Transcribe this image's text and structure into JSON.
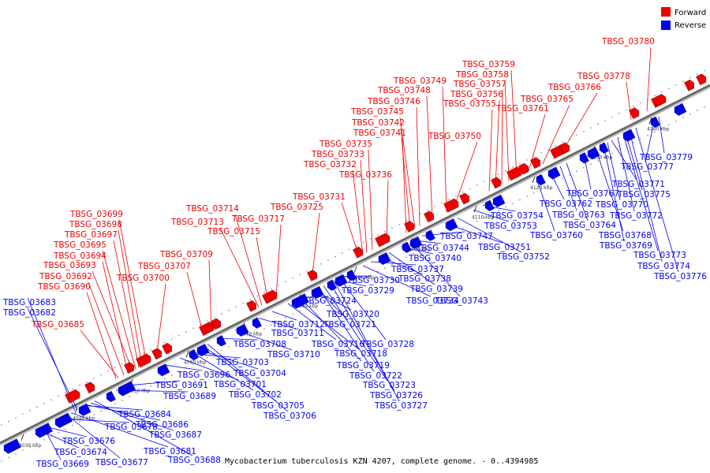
{
  "caption": "Mycobacterium tuberculosis KZN 4207, complete genome. - 0..4394985",
  "legend": [
    {
      "label": "Forward",
      "color": "#ee0000"
    },
    {
      "label": "Reverse",
      "color": "#0000ee"
    }
  ],
  "ticks": [
    "4030 kbp",
    "4040 kbp",
    "4050 kbp",
    "4060 kbp",
    "4070 kbp",
    "4080 kbp",
    "4090 kbp",
    "4100 kbp",
    "4110 kbp",
    "4120 kbp",
    "4130 kbp",
    "4140 kbp"
  ],
  "forward_genes": [
    "TBSG_03685",
    "TBSG_03690",
    "TBSG_03692",
    "TBSG_03693",
    "TBSG_03694",
    "TBSG_03695",
    "TBSG_03697",
    "TBSG_03698",
    "TBSG_03699",
    "TBSG_03700",
    "TBSG_03707",
    "TBSG_03709",
    "TBSG_03713",
    "TBSG_03714",
    "TBSG_03715",
    "TBSG_03717",
    "TBSG_03725",
    "TBSG_03731",
    "TBSG_03732",
    "TBSG_03733",
    "TBSG_03735",
    "TBSG_03736",
    "TBSG_03741",
    "TBSG_03742",
    "TBSG_03745",
    "TBSG_03746",
    "TBSG_03748",
    "TBSG_03749",
    "TBSG_03750",
    "TBSG_03755",
    "TBSG_03756",
    "TBSG_03757",
    "TBSG_03758",
    "TBSG_03759",
    "TBSG_03761",
    "TBSG_03765",
    "TBSG_03766",
    "TBSG_03778",
    "TBSG_03780"
  ],
  "reverse_genes": [
    "TBSG_03683",
    "TBSG_03682",
    "TBSG_03669",
    "TBSG_03674",
    "TBSG_03676",
    "TBSG_03677",
    "TBSG_03678",
    "TBSG_03681",
    "TBSG_03684",
    "TBSG_03686",
    "TBSG_03687",
    "TBSG_03688",
    "TBSG_03689",
    "TBSG_03691",
    "TBSG_03696",
    "TBSG_03701",
    "TBSG_03702",
    "TBSG_03703",
    "TBSG_03704",
    "TBSG_03705",
    "TBSG_03706",
    "TBSG_03708",
    "TBSG_03710",
    "TBSG_03711",
    "TBSG_03712",
    "TBSG_03716",
    "TBSG_03718",
    "TBSG_03719",
    "TBSG_03720",
    "TBSG_03721",
    "TBSG_03722",
    "TBSG_03723",
    "TBSG_03724",
    "TBSG_03726",
    "TBSG_03727",
    "TBSG_03728",
    "TBSG_03729",
    "TBSG_03730",
    "TBSG_03734",
    "TBSG_03737",
    "TBSG_03738",
    "TBSG_03739",
    "TBSG_03740",
    "TBSG_03743",
    "TBSG_03744",
    "TBSG_03747",
    "TBSG_03751",
    "TBSG_03752",
    "TBSG_03753",
    "TBSG_03754",
    "TBSG_03760",
    "TBSG_03762",
    "TBSG_03763",
    "TBSG_03764",
    "TBSG_03767",
    "TBSG_03768",
    "TBSG_03769",
    "TBSG_03770",
    "TBSG_03771",
    "TBSG_03772",
    "TBSG_03773",
    "TBSG_03774",
    "TBSG_03775",
    "TBSG_03776",
    "TBSG_03777",
    "TBSG_03779"
  ]
}
